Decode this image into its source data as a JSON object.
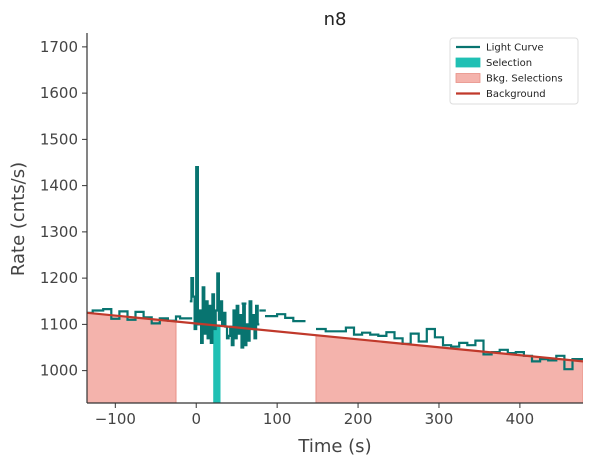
{
  "chart_data": {
    "type": "line",
    "title": "n8",
    "xlabel": "Time (s)",
    "ylabel": "Rate (cnts/s)",
    "xlim": [
      -135,
      478
    ],
    "ylim": [
      930,
      1730
    ],
    "xticks": [
      -100,
      0,
      100,
      200,
      300,
      400
    ],
    "yticks": [
      1000,
      1100,
      1200,
      1300,
      1400,
      1500,
      1600,
      1700
    ],
    "legend": {
      "placement": "top-right",
      "entries": [
        "Light Curve",
        "Selection",
        "Bkg. Selections",
        "Background"
      ]
    },
    "colors": {
      "light_curve": "#087470",
      "selection": "#20c0b4",
      "bkg_fill": "#f4b3ac",
      "bkg_edge": "#e89086",
      "background": "#c0392b",
      "axis": "#333333"
    },
    "background_model": {
      "x": [
        -135,
        478
      ],
      "y": [
        1125,
        1020
      ]
    },
    "bkg_selections": [
      [
        -135,
        -25
      ],
      [
        148,
        478
      ]
    ],
    "selection": {
      "x": [
        21,
        30
      ],
      "y": [
        930,
        1100
      ]
    },
    "light_curve_coarse": {
      "edges": [
        -135,
        -128,
        -115,
        -105,
        -95,
        -85,
        -75,
        -65,
        -55,
        -45,
        -35,
        -25,
        -20,
        -5,
        85,
        100,
        110,
        120,
        135,
        148,
        160,
        170,
        185,
        195,
        205,
        215,
        225,
        235,
        245,
        255,
        265,
        275,
        285,
        295,
        305,
        315,
        325,
        335,
        345,
        355,
        365,
        375,
        385,
        395,
        405,
        415,
        425,
        435,
        445,
        455,
        465,
        478
      ],
      "values": [
        1125,
        1130,
        1133,
        1112,
        1128,
        1110,
        1127,
        1115,
        1102,
        1113,
        1108,
        1117,
        1113,
        null,
        1118,
        1122,
        1114,
        1107,
        null,
        1090,
        1085,
        1085,
        1093,
        1078,
        1082,
        1078,
        1075,
        1083,
        1070,
        1058,
        1080,
        1063,
        1090,
        1072,
        1055,
        1052,
        1060,
        1055,
        1065,
        1035,
        1040,
        1045,
        1038,
        1040,
        1032,
        1020,
        1025,
        1022,
        1032,
        1003,
        1025
      ]
    },
    "light_curve_fine": {
      "x0": -8,
      "step": 2,
      "values": [
        1150,
        1200,
        1160,
        1090,
        1440,
        1100,
        1130,
        1060,
        1180,
        1080,
        1150,
        1070,
        1140,
        1060,
        1165,
        1090,
        1130,
        1210,
        1110,
        1150,
        1100,
        1125,
        1095,
        1070,
        1075,
        1095,
        1055,
        1130,
        1070,
        1140,
        1080,
        1120,
        1050,
        1145,
        1055,
        1100,
        1065,
        1150,
        1090,
        1120,
        1070,
        1140,
        1100
      ]
    },
    "light_curve_segments": [
      {
        "x": [
          78,
          86
        ],
        "y": [
          1130,
          1130
        ]
      },
      {
        "x": [
          56,
          62
        ],
        "y": [
          1145,
          1145
        ]
      }
    ]
  }
}
